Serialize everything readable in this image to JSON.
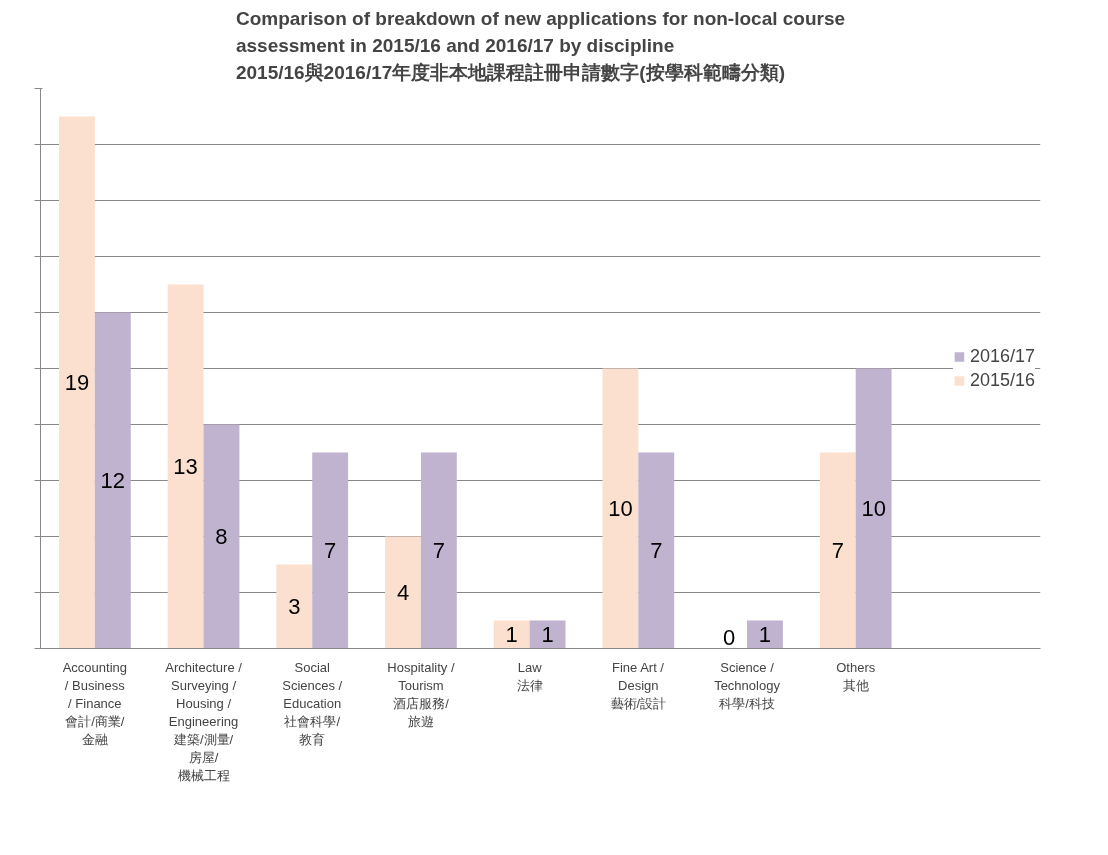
{
  "chart_data": {
    "type": "bar",
    "title": "Comparison of breakdown of new applications for non-local course\nassessment in 2015/16 and 2016/17 by discipline\n2015/16與2016/17年度非本地課程註冊申請數字(按學科範疇分類)",
    "categories": [
      "Accounting\n/ Business\n/ Finance\n會計/商業/\n金融",
      "Architecture /\nSurveying /\nHousing /\nEngineering\n建築/測量/\n房屋/\n機械工程",
      "Social\nSciences /\nEducation\n社會科學/\n教育",
      "Hospitality /\nTourism\n酒店服務/\n旅遊",
      "Law\n法律",
      "Fine Art /\nDesign\n藝術/設計",
      "Science /\nTechnology\n科學/科技",
      "Others\n其他"
    ],
    "series": [
      {
        "name": "2015/16",
        "color": "#fbe0cf",
        "values": [
          19,
          13,
          3,
          4,
          1,
          10,
          0,
          7
        ]
      },
      {
        "name": "2016/17",
        "color": "#bfb3d0",
        "values": [
          12,
          8,
          7,
          7,
          1,
          7,
          1,
          10
        ]
      }
    ],
    "ylim": [
      0,
      20
    ],
    "yticks": [
      {
        "value": 0,
        "label": null
      },
      {
        "value": 2,
        "label": null
      },
      {
        "value": 4,
        "label": null
      },
      {
        "value": 6,
        "label": null
      },
      {
        "value": 8,
        "label": null
      },
      {
        "value": 10,
        "label": null
      },
      {
        "value": 12,
        "label": null
      },
      {
        "value": 14,
        "label": null
      },
      {
        "value": 16,
        "label": null
      },
      {
        "value": 18,
        "label": null
      },
      {
        "value": 20,
        "label": null
      }
    ],
    "tick_labels": "x",
    "grid": "y",
    "legend": "right",
    "data_labels": true
  }
}
